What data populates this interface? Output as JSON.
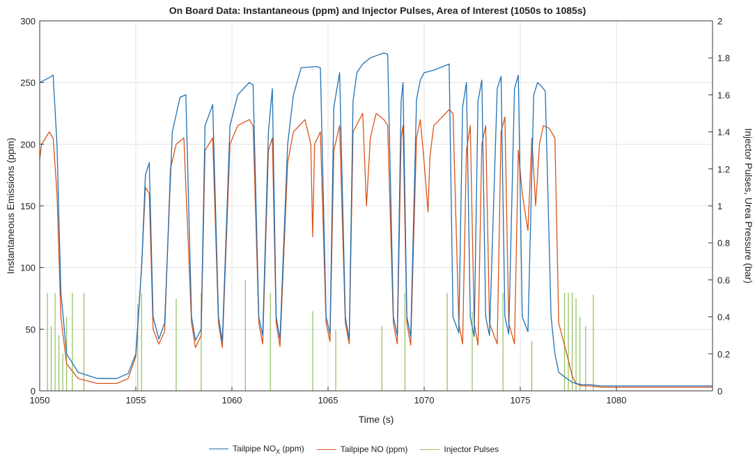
{
  "chart_data": {
    "type": "line",
    "title": "On Board Data: Instantaneous (ppm) and Injector Pulses, Area of Interest (1050s to 1085s)",
    "xlabel": "Time (s)",
    "ylabel_left": "Instantaneous Emissions (ppm)",
    "ylabel_right": "Injector Pulses, Urea Pressure (bar)",
    "xlim": [
      1050,
      1085
    ],
    "ylim_left": [
      0,
      300
    ],
    "ylim_right": [
      0,
      2
    ],
    "x_ticks": [
      "1050",
      "1055",
      "1060",
      "1065",
      "1070",
      "1075",
      "1080"
    ],
    "y_ticks_left": [
      "0",
      "50",
      "100",
      "150",
      "200",
      "250",
      "300"
    ],
    "y_ticks_right": [
      "0",
      "0.2",
      "0.4",
      "0.6",
      "0.8",
      "1",
      "1.2",
      "1.4",
      "1.6",
      "1.8",
      "2"
    ],
    "grid": true,
    "legend_position": "bottom",
    "series": [
      {
        "name": "Tailpipe NOX (ppm)",
        "legend_main": "Tailpipe NO",
        "legend_sub": "X",
        "legend_tail": " (ppm)",
        "color": "#1f6fb4",
        "axis": "left",
        "x": [
          1050.0,
          1050.5,
          1050.7,
          1050.9,
          1051.1,
          1051.4,
          1052.0,
          1053.0,
          1054.0,
          1054.6,
          1055.0,
          1055.3,
          1055.5,
          1055.7,
          1055.9,
          1056.2,
          1056.5,
          1056.9,
          1057.3,
          1057.6,
          1057.9,
          1058.1,
          1058.4,
          1058.6,
          1059.0,
          1059.3,
          1059.5,
          1059.9,
          1060.3,
          1060.9,
          1061.1,
          1061.4,
          1061.6,
          1061.9,
          1062.1,
          1062.3,
          1062.5,
          1062.9,
          1063.2,
          1063.6,
          1064.4,
          1064.6,
          1064.9,
          1065.1,
          1065.3,
          1065.6,
          1065.9,
          1066.1,
          1066.3,
          1066.5,
          1066.8,
          1067.2,
          1067.9,
          1068.1,
          1068.4,
          1068.6,
          1068.8,
          1068.9,
          1069.1,
          1069.3,
          1069.6,
          1069.8,
          1070.0,
          1070.5,
          1071.3,
          1071.5,
          1071.8,
          1072.0,
          1072.2,
          1072.4,
          1072.6,
          1072.8,
          1073.0,
          1073.2,
          1073.4,
          1073.8,
          1074.0,
          1074.2,
          1074.4,
          1074.7,
          1074.9,
          1075.1,
          1075.4,
          1075.7,
          1075.9,
          1076.1,
          1076.3,
          1076.6,
          1076.8,
          1077.0,
          1077.5,
          1077.7,
          1077.9,
          1078.2,
          1078.6,
          1079.2,
          1080.0,
          1082.0,
          1085.0
        ],
        "y": [
          250,
          254,
          256,
          200,
          80,
          30,
          15,
          10,
          10,
          14,
          30,
          100,
          175,
          185,
          60,
          42,
          55,
          210,
          238,
          240,
          60,
          41,
          50,
          215,
          232,
          60,
          40,
          215,
          240,
          250,
          248,
          60,
          45,
          210,
          245,
          60,
          42,
          200,
          240,
          262,
          263,
          262,
          60,
          46,
          230,
          258,
          60,
          42,
          235,
          258,
          265,
          270,
          274,
          273,
          60,
          45,
          235,
          250,
          60,
          44,
          236,
          252,
          258,
          260,
          265,
          60,
          47,
          230,
          250,
          60,
          44,
          235,
          252,
          60,
          45,
          245,
          255,
          60,
          46,
          245,
          256,
          60,
          48,
          240,
          250,
          247,
          243,
          60,
          30,
          15,
          9,
          7,
          6,
          5,
          5,
          4,
          4,
          4,
          4
        ]
      },
      {
        "name": "Tailpipe NO (ppm)",
        "color": "#d95319",
        "axis": "left",
        "x": [
          1050.0,
          1050.1,
          1050.3,
          1050.5,
          1050.7,
          1050.9,
          1051.1,
          1051.4,
          1052.0,
          1053.0,
          1054.0,
          1054.6,
          1055.0,
          1055.3,
          1055.5,
          1055.7,
          1055.9,
          1056.2,
          1056.5,
          1056.8,
          1057.1,
          1057.5,
          1057.9,
          1058.1,
          1058.4,
          1058.6,
          1059.0,
          1059.3,
          1059.5,
          1059.9,
          1060.3,
          1060.9,
          1061.1,
          1061.4,
          1061.6,
          1061.9,
          1062.1,
          1062.3,
          1062.5,
          1062.9,
          1063.2,
          1063.8,
          1064.1,
          1064.2,
          1064.3,
          1064.6,
          1064.9,
          1065.1,
          1065.3,
          1065.6,
          1065.9,
          1066.1,
          1066.3,
          1066.8,
          1067.0,
          1067.2,
          1067.5,
          1067.9,
          1068.1,
          1068.4,
          1068.6,
          1068.8,
          1068.9,
          1069.1,
          1069.3,
          1069.6,
          1069.8,
          1070.0,
          1070.2,
          1070.3,
          1070.5,
          1071.3,
          1071.5,
          1071.8,
          1072.0,
          1072.2,
          1072.4,
          1072.6,
          1072.8,
          1073.0,
          1073.2,
          1073.4,
          1073.8,
          1074.0,
          1074.2,
          1074.4,
          1074.7,
          1074.9,
          1075.1,
          1075.4,
          1075.6,
          1075.8,
          1076.0,
          1076.2,
          1076.5,
          1076.8,
          1077.0,
          1077.5,
          1077.7,
          1077.9,
          1078.2,
          1078.6,
          1079.2,
          1080.0,
          1082.0,
          1085.0
        ],
        "y": [
          188,
          200,
          205,
          210,
          205,
          160,
          60,
          22,
          10,
          6,
          6,
          10,
          28,
          100,
          165,
          160,
          50,
          38,
          48,
          180,
          200,
          205,
          55,
          35,
          45,
          195,
          205,
          55,
          35,
          200,
          215,
          220,
          215,
          55,
          38,
          195,
          205,
          55,
          36,
          185,
          210,
          220,
          200,
          125,
          200,
          210,
          55,
          40,
          195,
          215,
          55,
          38,
          210,
          225,
          150,
          205,
          225,
          220,
          215,
          55,
          38,
          205,
          215,
          55,
          37,
          205,
          220,
          185,
          145,
          190,
          215,
          228,
          225,
          55,
          38,
          195,
          215,
          55,
          37,
          200,
          215,
          55,
          38,
          210,
          222,
          55,
          38,
          195,
          160,
          130,
          205,
          150,
          200,
          215,
          213,
          205,
          55,
          25,
          12,
          6,
          4,
          4,
          3,
          3,
          3,
          3
        ]
      },
      {
        "name": "Injector Pulses",
        "color": "#8fbf5a",
        "axis": "right",
        "type": "impulse",
        "x": [
          1050.4,
          1050.6,
          1050.8,
          1051.0,
          1051.2,
          1051.4,
          1051.7,
          1052.3,
          1055.1,
          1055.3,
          1057.1,
          1058.4,
          1060.7,
          1062.0,
          1064.2,
          1065.4,
          1067.8,
          1069.0,
          1071.2,
          1072.5,
          1074.1,
          1075.6,
          1077.3,
          1077.5,
          1077.7,
          1077.9,
          1078.1,
          1078.4,
          1078.8
        ],
        "y": [
          0.53,
          0.35,
          0.53,
          0.3,
          0.2,
          0.4,
          0.53,
          0.53,
          0.47,
          0.53,
          0.5,
          0.53,
          0.6,
          0.53,
          0.43,
          0.33,
          0.35,
          0.53,
          0.53,
          0.43,
          0.53,
          0.27,
          0.53,
          0.53,
          0.53,
          0.5,
          0.4,
          0.35,
          0.52
        ]
      }
    ]
  }
}
